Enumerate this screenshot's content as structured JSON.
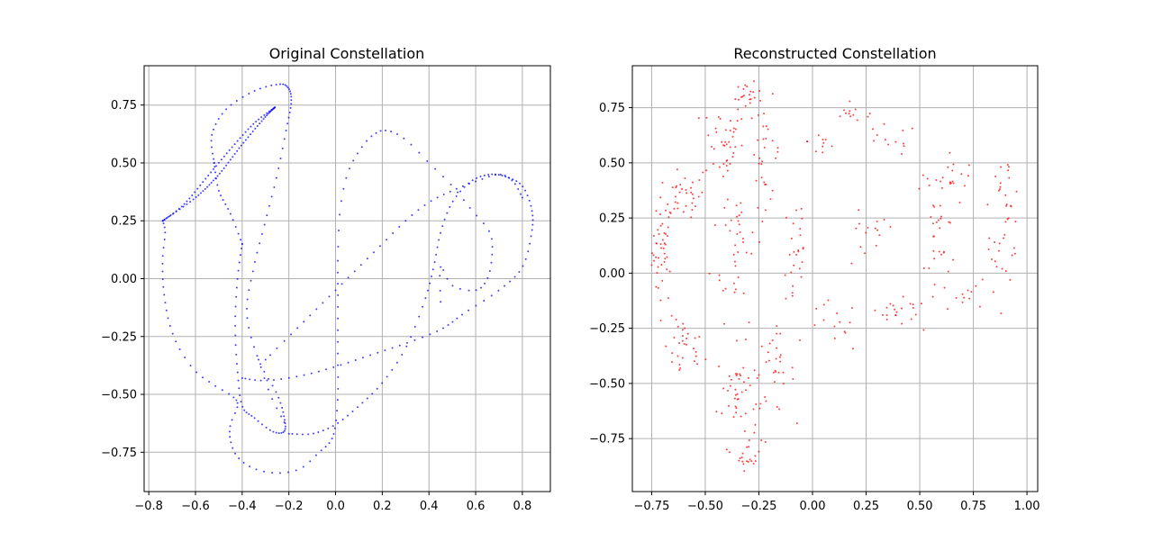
{
  "chart_data": [
    {
      "type": "scatter",
      "title": "Original Constellation",
      "xlabel": "",
      "ylabel": "",
      "xlim": [
        -0.82,
        0.92
      ],
      "ylim": [
        -0.92,
        0.92
      ],
      "xticks": [
        "−0.8",
        "−0.6",
        "−0.4",
        "−0.2",
        "0.0",
        "0.2",
        "0.4",
        "0.6",
        "0.8"
      ],
      "xtick_values": [
        -0.8,
        -0.6,
        -0.4,
        -0.2,
        0.0,
        0.2,
        0.4,
        0.6,
        0.8
      ],
      "yticks": [
        "−0.75",
        "−0.50",
        "−0.25",
        "0.00",
        "0.25",
        "0.50",
        "0.75"
      ],
      "ytick_values": [
        -0.75,
        -0.5,
        -0.25,
        0.0,
        0.25,
        0.5,
        0.75
      ],
      "grid": true,
      "color": "#0000ff",
      "series": [
        {
          "values_note": "",
          "curves": [
            {
              "points": [
                [
                  -0.74,
                  0.25
                ],
                [
                  -0.73,
                  0.2
                ],
                [
                  -0.74,
                  0.1
                ],
                [
                  -0.74,
                  0.0
                ],
                [
                  -0.73,
                  -0.1
                ],
                [
                  -0.71,
                  -0.2
                ],
                [
                  -0.67,
                  -0.3
                ],
                [
                  -0.6,
                  -0.4
                ],
                [
                  -0.52,
                  -0.46
                ],
                [
                  -0.44,
                  -0.51
                ],
                [
                  -0.42,
                  -0.55
                ],
                [
                  -0.45,
                  -0.63
                ],
                [
                  -0.45,
                  -0.7
                ],
                [
                  -0.42,
                  -0.77
                ],
                [
                  -0.35,
                  -0.82
                ],
                [
                  -0.25,
                  -0.84
                ],
                [
                  -0.15,
                  -0.82
                ],
                [
                  -0.07,
                  -0.75
                ],
                [
                  -0.02,
                  -0.7
                ],
                [
                  0.0,
                  -0.63
                ],
                [
                  0.01,
                  -0.5
                ],
                [
                  0.01,
                  -0.35
                ],
                [
                  0.01,
                  -0.2
                ],
                [
                  0.01,
                  -0.05
                ],
                [
                  0.01,
                  0.1
                ],
                [
                  0.02,
                  0.3
                ],
                [
                  0.05,
                  0.45
                ],
                [
                  0.1,
                  0.55
                ],
                [
                  0.16,
                  0.62
                ],
                [
                  0.22,
                  0.64
                ],
                [
                  0.3,
                  0.6
                ],
                [
                  0.4,
                  0.5
                ],
                [
                  0.5,
                  0.4
                ],
                [
                  0.58,
                  0.3
                ],
                [
                  0.66,
                  0.2
                ],
                [
                  0.67,
                  0.1
                ],
                [
                  0.65,
                  0.0
                ],
                [
                  0.6,
                  -0.05
                ],
                [
                  0.5,
                  -0.03
                ],
                [
                  0.45,
                  0.05
                ],
                [
                  0.45,
                  -0.1
                ]
              ],
              "n": 120
            },
            {
              "points": [
                [
                  -0.74,
                  0.25
                ],
                [
                  -0.6,
                  0.35
                ],
                [
                  -0.5,
                  0.45
                ],
                [
                  -0.4,
                  0.58
                ],
                [
                  -0.3,
                  0.7
                ],
                [
                  -0.26,
                  0.74
                ]
              ],
              "n": 55
            },
            {
              "points": [
                [
                  -0.74,
                  0.25
                ],
                [
                  -0.65,
                  0.32
                ],
                [
                  -0.55,
                  0.44
                ],
                [
                  -0.45,
                  0.56
                ],
                [
                  -0.35,
                  0.67
                ],
                [
                  -0.26,
                  0.74
                ]
              ],
              "n": 45
            },
            {
              "points": [
                [
                  -0.52,
                  0.5
                ],
                [
                  -0.53,
                  0.62
                ],
                [
                  -0.47,
                  0.73
                ],
                [
                  -0.35,
                  0.81
                ],
                [
                  -0.24,
                  0.84
                ],
                [
                  -0.2,
                  0.82
                ],
                [
                  -0.19,
                  0.76
                ],
                [
                  -0.21,
                  0.65
                ],
                [
                  -0.25,
                  0.45
                ],
                [
                  -0.3,
                  0.25
                ],
                [
                  -0.35,
                  0.05
                ],
                [
                  -0.38,
                  -0.15
                ],
                [
                  -0.33,
                  -0.35
                ],
                [
                  -0.25,
                  -0.5
                ],
                [
                  -0.22,
                  -0.6
                ],
                [
                  -0.22,
                  -0.66
                ],
                [
                  -0.27,
                  -0.66
                ],
                [
                  -0.35,
                  -0.6
                ],
                [
                  -0.4,
                  -0.55
                ],
                [
                  -0.42,
                  -0.4
                ],
                [
                  -0.43,
                  -0.2
                ],
                [
                  -0.42,
                  0.0
                ],
                [
                  -0.4,
                  0.15
                ]
              ],
              "n": 110
            },
            {
              "points": [
                [
                  -0.4,
                  0.15
                ],
                [
                  -0.45,
                  0.28
                ],
                [
                  -0.5,
                  0.38
                ],
                [
                  -0.52,
                  0.5
                ]
              ],
              "n": 16
            },
            {
              "points": [
                [
                  -0.4,
                  -0.43
                ],
                [
                  -0.3,
                  -0.44
                ],
                [
                  -0.15,
                  -0.42
                ],
                [
                  0.0,
                  -0.38
                ],
                [
                  0.15,
                  -0.33
                ],
                [
                  0.3,
                  -0.28
                ],
                [
                  0.45,
                  -0.22
                ],
                [
                  0.55,
                  -0.15
                ],
                [
                  0.7,
                  -0.05
                ],
                [
                  0.8,
                  0.05
                ],
                [
                  0.84,
                  0.2
                ],
                [
                  0.84,
                  0.3
                ],
                [
                  0.8,
                  0.4
                ],
                [
                  0.73,
                  0.44
                ],
                [
                  0.66,
                  0.45
                ],
                [
                  0.58,
                  0.42
                ],
                [
                  0.5,
                  0.33
                ],
                [
                  0.45,
                  0.2
                ],
                [
                  0.42,
                  0.05
                ],
                [
                  0.38,
                  -0.1
                ],
                [
                  0.3,
                  -0.3
                ],
                [
                  0.2,
                  -0.45
                ],
                [
                  0.1,
                  -0.55
                ],
                [
                  0.0,
                  -0.63
                ],
                [
                  -0.1,
                  -0.67
                ],
                [
                  -0.2,
                  -0.67
                ]
              ],
              "n": 120
            },
            {
              "points": [
                [
                  -0.3,
                  -0.35
                ],
                [
                  -0.2,
                  -0.25
                ],
                [
                  -0.1,
                  -0.15
                ],
                [
                  0.0,
                  -0.05
                ],
                [
                  0.1,
                  0.05
                ],
                [
                  0.2,
                  0.15
                ],
                [
                  0.3,
                  0.25
                ],
                [
                  0.4,
                  0.33
                ],
                [
                  0.5,
                  0.38
                ],
                [
                  0.6,
                  0.42
                ],
                [
                  0.7,
                  0.45
                ],
                [
                  0.76,
                  0.42
                ],
                [
                  0.8,
                  0.35
                ]
              ],
              "n": 45
            },
            {
              "points": [
                [
                  -0.22,
                  -0.62
                ],
                [
                  -0.28,
                  -0.5
                ],
                [
                  -0.33,
                  -0.35
                ]
              ],
              "n": 8
            }
          ]
        }
      ]
    },
    {
      "type": "scatter",
      "title": "Reconstructed Constellation",
      "xlabel": "",
      "ylabel": "",
      "xlim": [
        -0.84,
        1.05
      ],
      "ylim": [
        -0.99,
        0.94
      ],
      "xticks": [
        "−0.75",
        "−0.50",
        "−0.25",
        "0.00",
        "0.25",
        "0.50",
        "0.75",
        "1.00"
      ],
      "xtick_values": [
        -0.75,
        -0.5,
        -0.25,
        0.0,
        0.25,
        0.5,
        0.75,
        1.0
      ],
      "yticks": [
        "−0.75",
        "−0.50",
        "−0.25",
        "0.00",
        "0.25",
        "0.50",
        "0.75"
      ],
      "ytick_values": [
        -0.75,
        -0.5,
        -0.25,
        0.0,
        0.25,
        0.5,
        0.75
      ],
      "grid": true,
      "color": "#ff0000",
      "series": [
        {
          "values_note": "",
          "clusters": [
            {
              "center": [
                -0.7,
                0.1
              ],
              "spread": [
                0.04,
                0.2
              ],
              "n": 45
            },
            {
              "center": [
                -0.6,
                0.35
              ],
              "spread": [
                0.08,
                0.08
              ],
              "n": 30
            },
            {
              "center": [
                -0.6,
                -0.35
              ],
              "spread": [
                0.08,
                0.12
              ],
              "n": 30
            },
            {
              "center": [
                -0.42,
                0.6
              ],
              "spread": [
                0.08,
                0.16
              ],
              "n": 40
            },
            {
              "center": [
                -0.35,
                0.15
              ],
              "spread": [
                0.1,
                0.3
              ],
              "n": 40
            },
            {
              "center": [
                -0.35,
                -0.55
              ],
              "spread": [
                0.08,
                0.18
              ],
              "n": 45
            },
            {
              "center": [
                -0.3,
                -0.82
              ],
              "spread": [
                0.05,
                0.06
              ],
              "n": 20
            },
            {
              "center": [
                -0.3,
                0.8
              ],
              "spread": [
                0.05,
                0.05
              ],
              "n": 20
            },
            {
              "center": [
                -0.22,
                0.55
              ],
              "spread": [
                0.06,
                0.2
              ],
              "n": 30
            },
            {
              "center": [
                -0.18,
                -0.45
              ],
              "spread": [
                0.08,
                0.15
              ],
              "n": 30
            },
            {
              "center": [
                -0.08,
                0.1
              ],
              "spread": [
                0.05,
                0.3
              ],
              "n": 25
            },
            {
              "center": [
                0.05,
                0.6
              ],
              "spread": [
                0.06,
                0.08
              ],
              "n": 10
            },
            {
              "center": [
                0.2,
                0.72
              ],
              "spread": [
                0.1,
                0.03
              ],
              "n": 12
            },
            {
              "center": [
                0.35,
                0.6
              ],
              "spread": [
                0.12,
                0.06
              ],
              "n": 12
            },
            {
              "center": [
                0.25,
                0.15
              ],
              "spread": [
                0.12,
                0.12
              ],
              "n": 15
            },
            {
              "center": [
                0.1,
                -0.25
              ],
              "spread": [
                0.1,
                0.1
              ],
              "n": 15
            },
            {
              "center": [
                0.4,
                -0.18
              ],
              "spread": [
                0.12,
                0.05
              ],
              "n": 20
            },
            {
              "center": [
                0.6,
                0.2
              ],
              "spread": [
                0.06,
                0.3
              ],
              "n": 35
            },
            {
              "center": [
                0.65,
                0.45
              ],
              "spread": [
                0.1,
                0.05
              ],
              "n": 15
            },
            {
              "center": [
                0.75,
                -0.1
              ],
              "spread": [
                0.12,
                0.05
              ],
              "n": 12
            },
            {
              "center": [
                0.9,
                0.3
              ],
              "spread": [
                0.06,
                0.2
              ],
              "n": 30
            },
            {
              "center": [
                0.85,
                0.05
              ],
              "spread": [
                0.05,
                0.08
              ],
              "n": 8
            }
          ]
        }
      ]
    }
  ]
}
